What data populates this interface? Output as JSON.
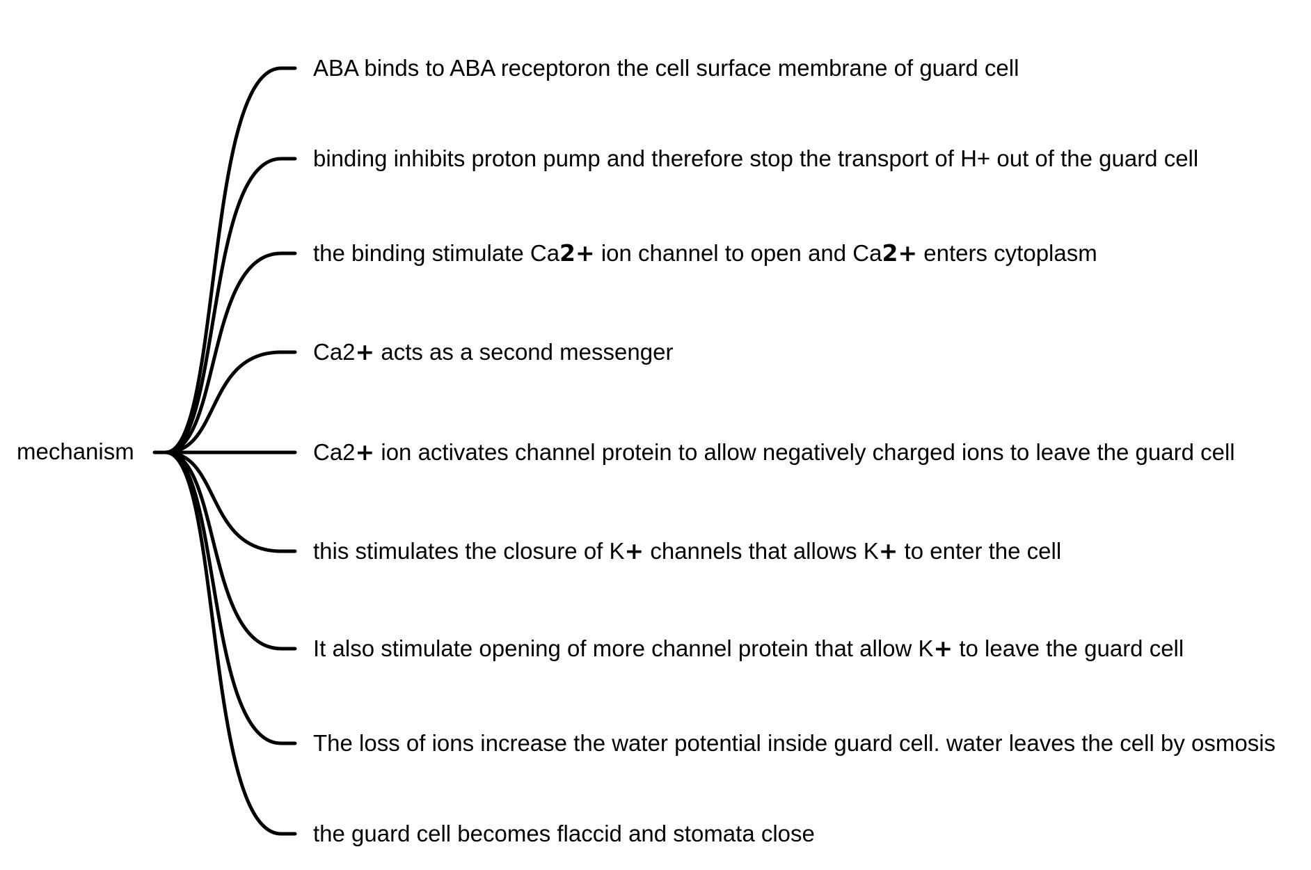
{
  "root": {
    "label": "mechanism"
  },
  "branches": [
    {
      "id": "b1",
      "text": [
        {
          "t": "ABA binds to ABA receptoron the cell surface membrane of guard cell"
        }
      ]
    },
    {
      "id": "b2",
      "text": [
        {
          "t": "binding inhibits proton pump and therefore stop the transport of H+ out of the guard cell"
        }
      ]
    },
    {
      "id": "b3",
      "text": [
        {
          "t": "the binding stimulate Ca"
        },
        {
          "t": "2+",
          "emph": true
        },
        {
          "t": " ion channel to open and Ca"
        },
        {
          "t": "2+",
          "emph": true
        },
        {
          "t": " enters cytoplasm"
        }
      ]
    },
    {
      "id": "b4",
      "text": [
        {
          "t": "Ca2"
        },
        {
          "t": "+",
          "emph": true
        },
        {
          "t": " acts as a second messenger"
        }
      ]
    },
    {
      "id": "b5",
      "text": [
        {
          "t": "Ca2"
        },
        {
          "t": "+",
          "emph": true
        },
        {
          "t": " ion activates channel protein to allow negatively charged ions to leave the guard cell"
        }
      ]
    },
    {
      "id": "b6",
      "text": [
        {
          "t": "this stimulates the closure of K"
        },
        {
          "t": "+",
          "emph": true
        },
        {
          "t": " channels that allows K"
        },
        {
          "t": "+",
          "emph": true
        },
        {
          "t": " to enter the cell"
        }
      ]
    },
    {
      "id": "b7",
      "text": [
        {
          "t": "It also stimulate opening of more channel protein that allow K"
        },
        {
          "t": "+",
          "emph": true
        },
        {
          "t": " to leave the guard cell"
        }
      ]
    },
    {
      "id": "b8",
      "text": [
        {
          "t": "The loss of ions increase the water potential inside guard cell. water leaves the cell by osmosis"
        }
      ]
    },
    {
      "id": "b9",
      "text": [
        {
          "t": "the guard cell becomes flaccid and stomata close"
        }
      ]
    }
  ]
}
